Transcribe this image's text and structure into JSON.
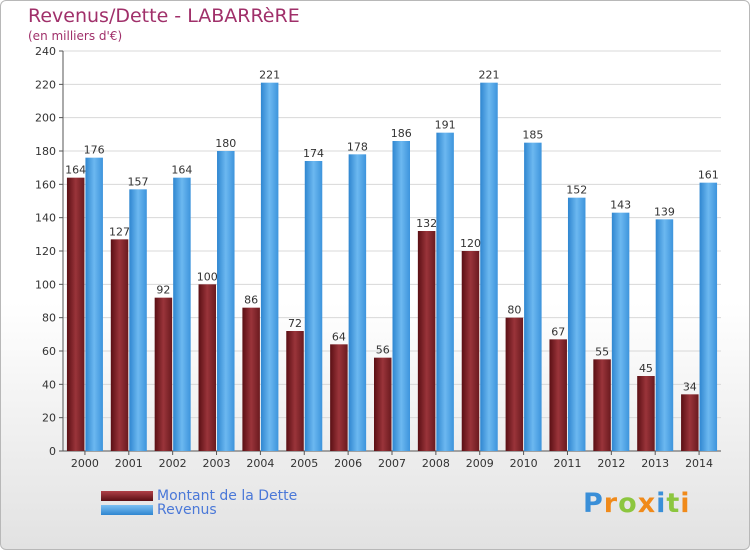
{
  "title": "Revenus/Dette - LABARRèRE",
  "subtitle": "(en milliers d'€)",
  "colors": {
    "debt": "#8a2a2e",
    "revenue": "#4aa3e8",
    "title": "#a0306a"
  },
  "logo": [
    "P",
    "r",
    "o",
    "x",
    "i",
    "t",
    "i"
  ],
  "chart_data": {
    "type": "bar",
    "categories": [
      "2000",
      "2001",
      "2002",
      "2003",
      "2004",
      "2005",
      "2006",
      "2007",
      "2008",
      "2009",
      "2010",
      "2011",
      "2012",
      "2013",
      "2014"
    ],
    "series": [
      {
        "name": "Montant de la Dette",
        "values": [
          164,
          127,
          92,
          100,
          86,
          72,
          64,
          56,
          132,
          120,
          80,
          67,
          55,
          45,
          34
        ]
      },
      {
        "name": "Revenus",
        "values": [
          176,
          157,
          164,
          180,
          221,
          174,
          178,
          186,
          191,
          221,
          185,
          152,
          143,
          139,
          161
        ]
      }
    ],
    "ylim": [
      0,
      240
    ],
    "yticks": [
      0,
      20,
      40,
      60,
      80,
      100,
      120,
      140,
      160,
      180,
      200,
      220,
      240
    ],
    "grid": true,
    "legend": "bottom-left"
  }
}
